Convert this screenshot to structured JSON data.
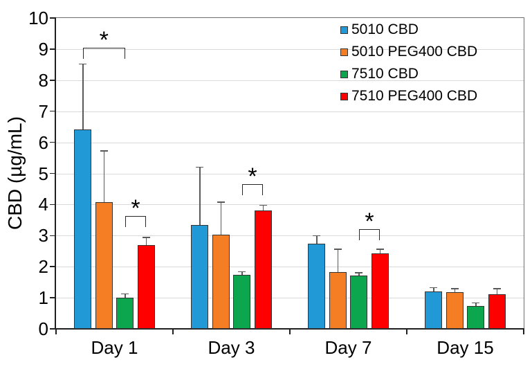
{
  "chart_data": {
    "type": "bar",
    "title": "",
    "xlabel": "",
    "ylabel": "CBD (µg/mL)",
    "ylim": [
      0,
      10
    ],
    "yticks": [
      0,
      1,
      2,
      3,
      4,
      5,
      6,
      7,
      8,
      9,
      10
    ],
    "grid": true,
    "legend_position": "top-right-inside",
    "categories": [
      "Day 1",
      "Day 3",
      "Day 7",
      "Day 15"
    ],
    "series": [
      {
        "name": "5010 CBD",
        "color": "#2199D7",
        "values": [
          6.42,
          3.35,
          2.75,
          1.21
        ],
        "errors_up": [
          2.1,
          1.85,
          0.25,
          0.12
        ]
      },
      {
        "name": "5010 PEG400 CBD",
        "color": "#F57E25",
        "values": [
          4.07,
          3.03,
          1.83,
          1.19
        ],
        "errors_up": [
          1.65,
          1.05,
          0.73,
          0.1
        ]
      },
      {
        "name": "7510 CBD",
        "color": "#0CA64F",
        "values": [
          1.0,
          1.74,
          1.72,
          0.73
        ],
        "errors_up": [
          0.13,
          0.1,
          0.08,
          0.1
        ]
      },
      {
        "name": "7510 PEG400 CBD",
        "color": "#FF0000",
        "values": [
          2.69,
          3.81,
          2.43,
          1.11
        ],
        "errors_up": [
          0.25,
          0.16,
          0.13,
          0.18
        ]
      }
    ],
    "annotations": [
      {
        "type": "significance-bracket",
        "label": "*",
        "group": "Day 1",
        "from_series": "5010 CBD",
        "to_series": "7510 CBD",
        "bracket_y": 9.05
      },
      {
        "type": "significance-bracket",
        "label": "*",
        "group": "Day 1",
        "from_series": "7510 CBD",
        "to_series": "7510 PEG400 CBD",
        "bracket_y": 3.62
      },
      {
        "type": "significance-bracket",
        "label": "*",
        "group": "Day 3",
        "from_series": "7510 CBD",
        "to_series": "7510 PEG400 CBD",
        "bracket_y": 4.65
      },
      {
        "type": "significance-bracket",
        "label": "*",
        "group": "Day 7",
        "from_series": "7510 CBD",
        "to_series": "7510 PEG400 CBD",
        "bracket_y": 3.2
      }
    ],
    "colors": {
      "gridline": "#d9d9d9",
      "axis": "#1f1f1f",
      "plot_border": "#6e6e6e",
      "error_bar": "#595959",
      "bar_outline": "#333333"
    }
  }
}
